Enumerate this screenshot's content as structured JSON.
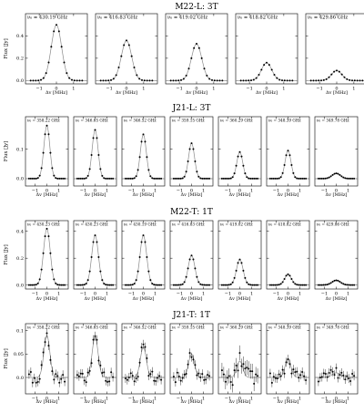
{
  "colors": {
    "axis": "#000000",
    "model_line": "#8a8a8a",
    "data_point": "#000000"
  },
  "chart_data": [
    {
      "type": "line",
      "title": "M22-L: 3T",
      "ylabel": "Flux [Jy]",
      "xlabel": "Δv [MHz]",
      "xticks": [
        -1,
        0,
        1
      ],
      "yticks": [
        0.0,
        0.2,
        0.4
      ],
      "xlim": [
        -1.8,
        1.8
      ],
      "ylim": [
        -0.03,
        0.6
      ],
      "panels": [
        {
          "freq_label": "ν₀ = 430.19 GHz",
          "peak": 0.5,
          "sigma": 0.3,
          "noise": 0.0
        },
        {
          "freq_label": "ν₀ = 416.83 GHz",
          "peak": 0.36,
          "sigma": 0.3,
          "noise": 0.0
        },
        {
          "freq_label": "ν₀ = 419.02 GHz",
          "peak": 0.33,
          "sigma": 0.3,
          "noise": 0.0
        },
        {
          "freq_label": "ν₀ = 418.82 GHz",
          "peak": 0.16,
          "sigma": 0.3,
          "noise": 0.0
        },
        {
          "freq_label": "ν₀ = 429.86 GHz",
          "peak": 0.09,
          "sigma": 0.3,
          "noise": 0.0
        }
      ]
    },
    {
      "type": "line",
      "title": "J21-L: 3T",
      "ylabel": "Flux [Jy]",
      "xlabel": "Δv [MHz]",
      "xticks": [
        -1,
        0,
        1
      ],
      "yticks": [
        0.0,
        0.1
      ],
      "xlim": [
        -1.8,
        1.8
      ],
      "ylim": [
        -0.025,
        0.21
      ],
      "panels": [
        {
          "freq_label": "ν₀ = 358.22 GHz",
          "peak": 0.18,
          "sigma": 0.25,
          "noise": 0.0
        },
        {
          "freq_label": "ν₀ = 346.65 GHz",
          "peak": 0.165,
          "sigma": 0.25,
          "noise": 0.0
        },
        {
          "freq_label": "ν₀ = 346.52 GHz",
          "peak": 0.15,
          "sigma": 0.25,
          "noise": 0.0
        },
        {
          "freq_label": "ν₀ = 359.15 GHz",
          "peak": 0.12,
          "sigma": 0.25,
          "noise": 0.0
        },
        {
          "freq_label": "ν₀ = 360.29 GHz",
          "peak": 0.09,
          "sigma": 0.25,
          "noise": 0.0
        },
        {
          "freq_label": "ν₀ = 348.39 GHz",
          "peak": 0.095,
          "sigma": 0.25,
          "noise": 0.0
        },
        {
          "freq_label": "ν₀ = 349.78 GHz",
          "peak": 0.018,
          "sigma": 0.35,
          "noise": 0.0
        }
      ]
    },
    {
      "type": "line",
      "title": "M22-T: 1T",
      "ylabel": "Flux [Jy]",
      "xlabel": "Δv [MHz]",
      "xticks": [
        -1,
        0,
        1
      ],
      "yticks": [
        0.0,
        0.2,
        0.4
      ],
      "xlim": [
        -1.8,
        1.8
      ],
      "ylim": [
        -0.03,
        0.48
      ],
      "panels": [
        {
          "freq_label": "ν₀ = 430.23 GHz",
          "peak": 0.42,
          "sigma": 0.28,
          "noise": 0.0
        },
        {
          "freq_label": "ν₀ = 430.23 GHz",
          "peak": 0.37,
          "sigma": 0.28,
          "noise": 0.0
        },
        {
          "freq_label": "ν₀ = 430.19 GHz",
          "peak": 0.37,
          "sigma": 0.28,
          "noise": 0.0
        },
        {
          "freq_label": "ν₀ = 416.83 GHz",
          "peak": 0.22,
          "sigma": 0.28,
          "noise": 0.0
        },
        {
          "freq_label": "ν₀ = 419.02 GHz",
          "peak": 0.19,
          "sigma": 0.28,
          "noise": 0.0
        },
        {
          "freq_label": "ν₀ = 418.82 GHz",
          "peak": 0.08,
          "sigma": 0.28,
          "noise": 0.0
        },
        {
          "freq_label": "ν₀ = 429.86 GHz",
          "peak": 0.035,
          "sigma": 0.35,
          "noise": 0.0
        }
      ]
    },
    {
      "type": "line",
      "title": "J21-T: 1T",
      "ylabel": "Flux [Jy]",
      "xlabel": "Δv [MHz]",
      "xticks": [
        -1,
        0,
        1
      ],
      "yticks": [
        0.0,
        0.05,
        0.1
      ],
      "xlim": [
        -1.8,
        1.8
      ],
      "ylim": [
        -0.035,
        0.115
      ],
      "panels": [
        {
          "freq_label": "ν₀ = 358.22 GHz",
          "peak": 0.09,
          "sigma": 0.25,
          "noise": 0.012
        },
        {
          "freq_label": "ν₀ = 346.65 GHz",
          "peak": 0.087,
          "sigma": 0.25,
          "noise": 0.012
        },
        {
          "freq_label": "ν₀ = 346.52 GHz",
          "peak": 0.065,
          "sigma": 0.25,
          "noise": 0.012
        },
        {
          "freq_label": "ν₀ = 359.15 GHz",
          "peak": 0.05,
          "sigma": 0.25,
          "noise": 0.012
        },
        {
          "freq_label": "ν₀ = 360.29 GHz",
          "peak": 0.035,
          "sigma": 0.25,
          "noise": 0.02
        },
        {
          "freq_label": "ν₀ = 348.39 GHz",
          "peak": 0.04,
          "sigma": 0.25,
          "noise": 0.012
        },
        {
          "freq_label": "ν₀ = 349.78 GHz",
          "peak": 0.01,
          "sigma": 0.35,
          "noise": 0.012
        }
      ]
    }
  ]
}
